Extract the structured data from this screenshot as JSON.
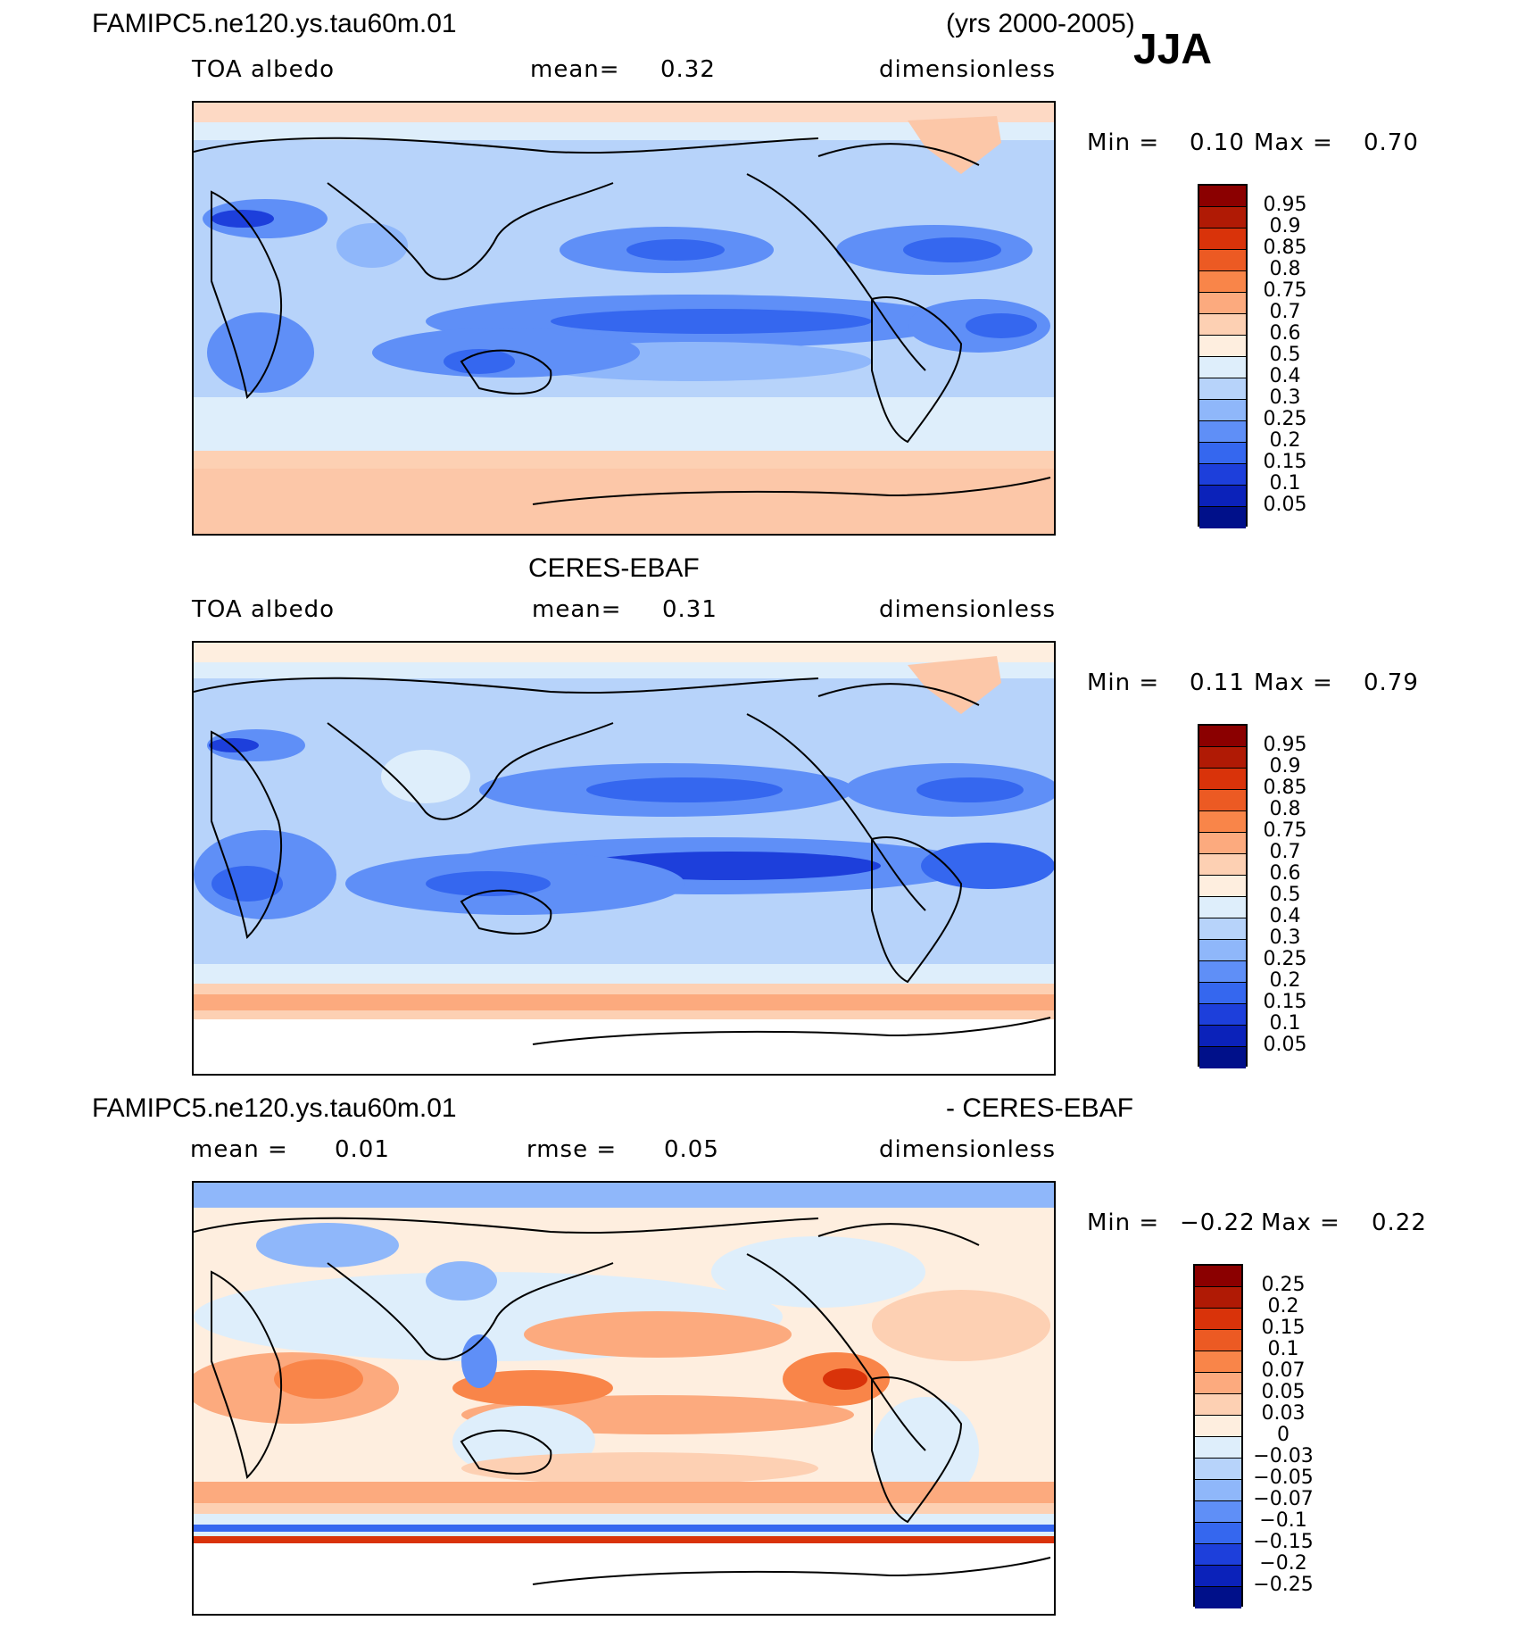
{
  "header": {
    "case": "FAMIPC5.ne120.ys.tau60m.01",
    "years": "(yrs 2000-2005)",
    "season": "JJA"
  },
  "panels": [
    {
      "id": "model",
      "title": "",
      "var": "TOA albedo",
      "mean_label": "mean=",
      "mean_value": "0.32",
      "units": "dimensionless",
      "min_label": "Min =",
      "min_value": "0.10",
      "max_label": "Max =",
      "max_value": "0.70",
      "colorbar_labels": [
        "0.95",
        "0.9",
        "0.85",
        "0.8",
        "0.75",
        "0.7",
        "0.6",
        "0.5",
        "0.4",
        "0.3",
        "0.25",
        "0.2",
        "0.15",
        "0.1",
        "0.05"
      ],
      "colorbar_colors": [
        "#8b0000",
        "#b01a05",
        "#d9330a",
        "#ec5a23",
        "#f98549",
        "#fcaa7e",
        "#fdd0b3",
        "#feeedf",
        "#deeefb",
        "#b7d3fa",
        "#8fb7fa",
        "#5f8ff7",
        "#3567ef",
        "#1d3fdb",
        "#0b22ba",
        "#00108a"
      ]
    },
    {
      "id": "obs",
      "title": "CERES-EBAF",
      "var": "TOA albedo",
      "mean_label": "mean=",
      "mean_value": "0.31",
      "units": "dimensionless",
      "min_label": "Min =",
      "min_value": "0.11",
      "max_label": "Max =",
      "max_value": "0.79",
      "colorbar_labels": [
        "0.95",
        "0.9",
        "0.85",
        "0.8",
        "0.75",
        "0.7",
        "0.6",
        "0.5",
        "0.4",
        "0.3",
        "0.25",
        "0.2",
        "0.15",
        "0.1",
        "0.05"
      ],
      "colorbar_colors": [
        "#8b0000",
        "#b01a05",
        "#d9330a",
        "#ec5a23",
        "#f98549",
        "#fcaa7e",
        "#fdd0b3",
        "#feeedf",
        "#deeefb",
        "#b7d3fa",
        "#8fb7fa",
        "#5f8ff7",
        "#3567ef",
        "#1d3fdb",
        "#0b22ba",
        "#00108a"
      ]
    },
    {
      "id": "diff",
      "title_left": "FAMIPC5.ne120.ys.tau60m.01",
      "title_right": "- CERES-EBAF",
      "mean_label": "mean =",
      "mean_value": "0.01",
      "rmse_label": "rmse =",
      "rmse_value": "0.05",
      "units": "dimensionless",
      "min_label": "Min =",
      "min_value": "−0.22",
      "max_label": "Max =",
      "max_value": "0.22",
      "colorbar_labels": [
        "0.25",
        "0.2",
        "0.15",
        "0.1",
        "0.07",
        "0.05",
        "0.03",
        "0",
        "−0.03",
        "−0.05",
        "−0.07",
        "−0.1",
        "−0.15",
        "−0.2",
        "−0.25"
      ],
      "colorbar_colors": [
        "#8b0000",
        "#b01a05",
        "#d9330a",
        "#ec5a23",
        "#f98549",
        "#fcaa7e",
        "#fdd0b3",
        "#feeedf",
        "#deeefb",
        "#b7d3fa",
        "#8fb7fa",
        "#5f8ff7",
        "#3567ef",
        "#1d3fdb",
        "#0b22ba",
        "#00108a"
      ]
    }
  ]
}
